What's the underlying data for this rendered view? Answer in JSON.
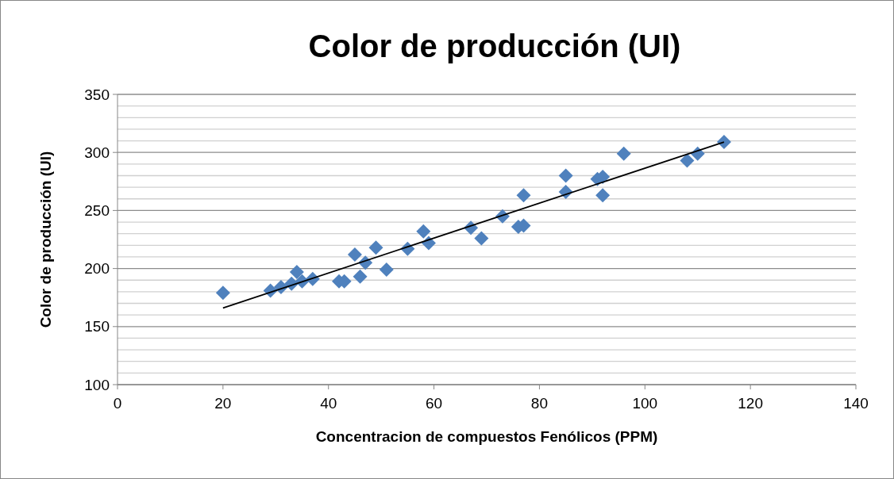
{
  "chart_data": {
    "type": "scatter",
    "title": "Color de producción (UI)",
    "xlabel": "Concentracion de compuestos Fenólicos (PPM)",
    "ylabel": "Color de producción (UI)",
    "xlim": [
      0,
      140
    ],
    "xticks": [
      0,
      20,
      40,
      60,
      80,
      100,
      120,
      140
    ],
    "ylim": [
      100,
      350
    ],
    "yticks": [
      100,
      {
        "value": 110,
        "label": null
      },
      {
        "value": 120,
        "label": null
      },
      {
        "value": 130,
        "label": null
      },
      {
        "value": 140,
        "label": null
      },
      150,
      {
        "value": 160,
        "label": null
      },
      {
        "value": 170,
        "label": null
      },
      {
        "value": 180,
        "label": null
      },
      {
        "value": 190,
        "label": null
      },
      200,
      {
        "value": 210,
        "label": null
      },
      {
        "value": 220,
        "label": null
      },
      {
        "value": 230,
        "label": null
      },
      {
        "value": 240,
        "label": null
      },
      250,
      {
        "value": 260,
        "label": null
      },
      {
        "value": 270,
        "label": null
      },
      {
        "value": 280,
        "label": null
      },
      {
        "value": 290,
        "label": null
      },
      300,
      {
        "value": 310,
        "label": null
      },
      {
        "value": 320,
        "label": null
      },
      {
        "value": 330,
        "label": null
      },
      {
        "value": 340,
        "label": null
      },
      350
    ],
    "grid": "y",
    "series": [
      {
        "marker": "diamond",
        "color": "#4f81bd",
        "x": [
          20,
          29,
          31,
          33,
          34,
          35,
          37,
          42,
          43,
          45,
          46,
          47,
          49,
          51,
          55,
          58,
          59,
          67,
          69,
          73,
          76,
          77,
          77,
          85,
          85,
          91,
          92,
          92,
          96,
          108,
          110,
          115
        ],
        "values": [
          179,
          181,
          184,
          187,
          197,
          189,
          191,
          189,
          189,
          212,
          193,
          205,
          218,
          199,
          217,
          232,
          222,
          235,
          226,
          245,
          236,
          237,
          263,
          280,
          266,
          277,
          279,
          263,
          299,
          293,
          299,
          309
        ]
      },
      {
        "type": "line",
        "color": "#000000",
        "x": [
          20,
          115
        ],
        "values": [
          166,
          309
        ]
      }
    ]
  }
}
